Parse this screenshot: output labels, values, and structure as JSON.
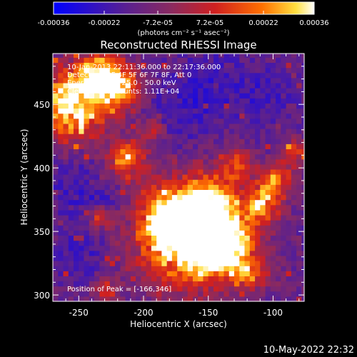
{
  "chart_data": {
    "type": "heatmap",
    "title": "Reconstructed RHESSI Image",
    "colorbar": {
      "ticks": [
        "-0.00036",
        "-0.00022",
        "-7.2e-05",
        "7.2e-05",
        "0.00022",
        "0.00036"
      ],
      "tick_values": [
        -0.00036,
        -0.00022,
        -7.2e-05,
        7.2e-05,
        0.00022,
        0.00036
      ],
      "range": [
        -0.00036,
        0.00036
      ],
      "label": "(photons cm⁻² s⁻¹ asec⁻²)",
      "colors": [
        "#0000ff",
        "#5a2090",
        "#8a2a60",
        "#d02020",
        "#ff7000",
        "#ffe040",
        "#ffffff"
      ]
    },
    "xlabel": "Heliocentric X (arcsec)",
    "ylabel": "Heliocentric Y (arcsec)",
    "xlim": [
      -270,
      -76
    ],
    "ylim": [
      295,
      490
    ],
    "xticks": [
      -250,
      -200,
      -150,
      -100
    ],
    "yticks": [
      300,
      350,
      400,
      450
    ],
    "xtick_labels": [
      "-250",
      "-200",
      "-150",
      "-100"
    ],
    "ytick_labels": [
      "300",
      "350",
      "400",
      "450"
    ],
    "annotations": [
      "10-Jan-2013 22:11:36.000 to 22:17:36.000",
      "Detectors: 3F 4F 5F 6F 7F 8F, Att 0",
      "Energy Range: 25.0 - 50.0 keV",
      "Clean    Total counts: 1.11E+04"
    ],
    "peak_label": "Position of Peak = [-166,346]",
    "peak_position": [
      -166,
      346
    ],
    "timestamp": "10-May-2022 22:32",
    "hotspots": [
      {
        "x": -165,
        "y": 348,
        "r": 38,
        "amp": 1.0
      },
      {
        "x": -140,
        "y": 338,
        "r": 20,
        "amp": 0.6
      },
      {
        "x": -185,
        "y": 355,
        "r": 14,
        "amp": 0.5
      },
      {
        "x": -258,
        "y": 448,
        "r": 26,
        "amp": 0.75
      },
      {
        "x": -235,
        "y": 472,
        "r": 18,
        "amp": 0.55
      },
      {
        "x": -220,
        "y": 460,
        "r": 16,
        "amp": 0.5
      },
      {
        "x": -215,
        "y": 405,
        "r": 14,
        "amp": 0.5
      },
      {
        "x": -150,
        "y": 370,
        "r": 16,
        "amp": 0.45
      },
      {
        "x": -110,
        "y": 370,
        "r": 14,
        "amp": 0.5
      },
      {
        "x": -100,
        "y": 390,
        "r": 12,
        "amp": 0.45
      },
      {
        "x": -130,
        "y": 400,
        "r": 12,
        "amp": 0.35
      },
      {
        "x": -235,
        "y": 360,
        "r": 10,
        "amp": 0.35
      },
      {
        "x": -120,
        "y": 315,
        "r": 12,
        "amp": 0.4
      },
      {
        "x": -85,
        "y": 410,
        "r": 10,
        "amp": 0.35
      },
      {
        "x": -195,
        "y": 428,
        "r": 10,
        "amp": 0.3
      },
      {
        "x": -230,
        "y": 300,
        "r": 10,
        "amp": 0.3
      }
    ],
    "dark_band": [
      {
        "x": -255,
        "y": 385,
        "r": 22
      },
      {
        "x": -230,
        "y": 370,
        "r": 18
      },
      {
        "x": -175,
        "y": 440,
        "r": 26
      },
      {
        "x": -150,
        "y": 465,
        "r": 24
      },
      {
        "x": -110,
        "y": 455,
        "r": 22
      },
      {
        "x": -250,
        "y": 330,
        "r": 20
      }
    ]
  }
}
